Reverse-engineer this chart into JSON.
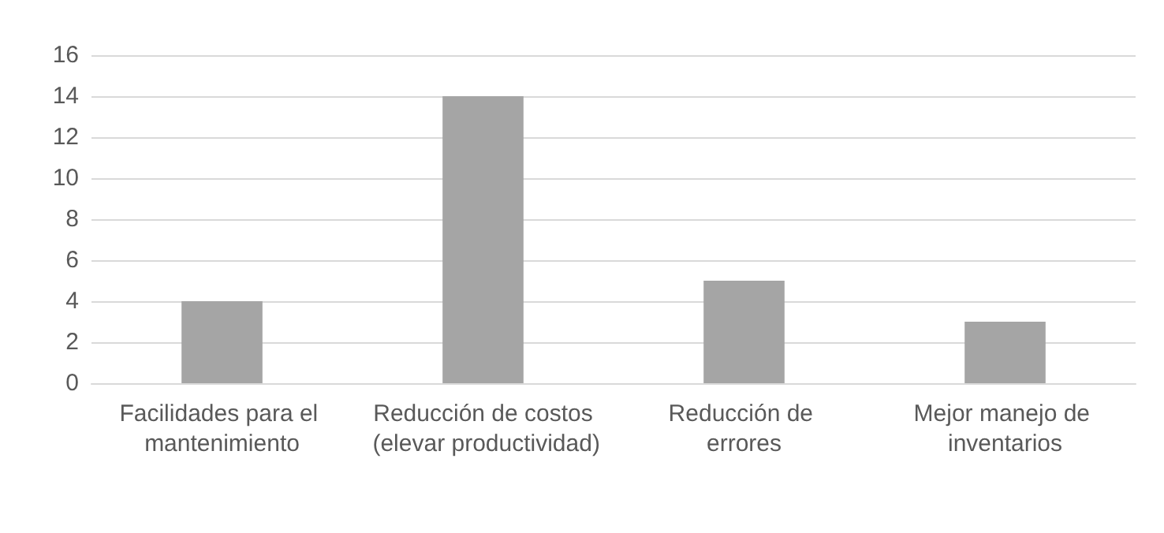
{
  "chart_data": {
    "type": "bar",
    "categories": [
      "Facilidades para el mantenimiento",
      "Reducción de costos (elevar productividad)",
      "Reducción de errores",
      "Mejor manejo de inventarios"
    ],
    "values": [
      4,
      14,
      5,
      3
    ],
    "color": "#a5a5a5",
    "ylim": [
      0,
      16
    ],
    "yticks": [
      0,
      2,
      4,
      6,
      8,
      10,
      12,
      14,
      16
    ],
    "grid": "y"
  }
}
